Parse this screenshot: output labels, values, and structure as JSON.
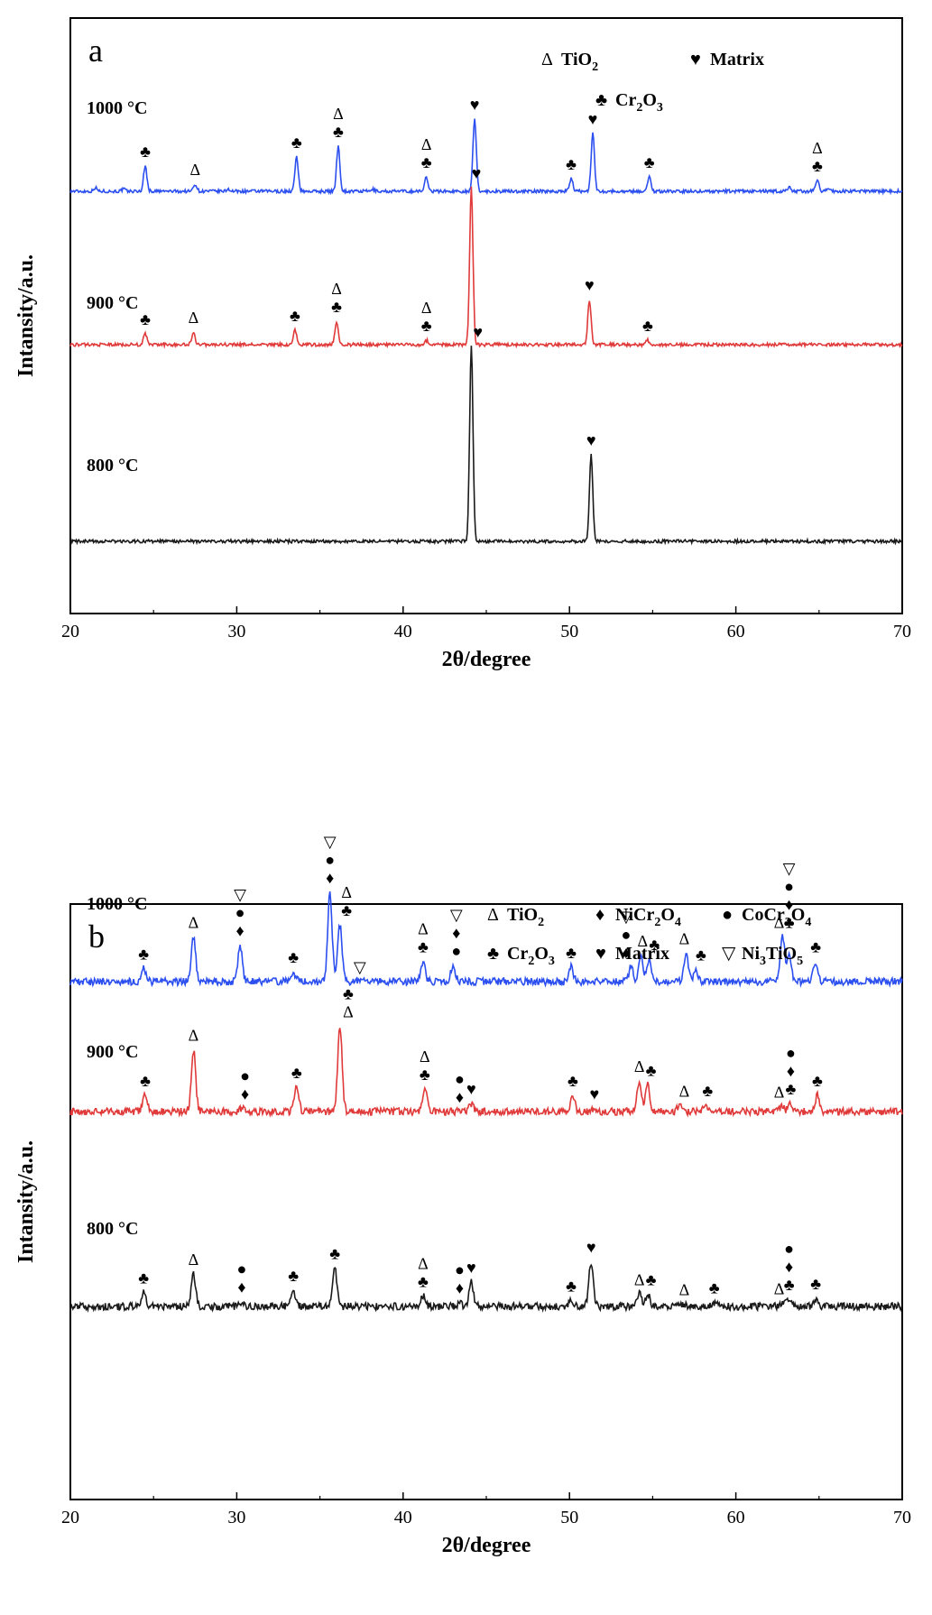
{
  "chart_data": [
    {
      "type": "line",
      "panel_label": "a",
      "xlabel": "2θ/degree",
      "ylabel": "Intansity/a.u.",
      "xlim": [
        20,
        70
      ],
      "xticks": [
        "20",
        "30",
        "40",
        "50",
        "60",
        "70"
      ],
      "legend": {
        "placement": "top-right",
        "items": [
          {
            "symbol": "Δ",
            "label": "TiO",
            "sub": "2"
          },
          {
            "symbol": "♥",
            "label": "Matrix",
            "sub": ""
          },
          {
            "symbol": "♣",
            "label": "Cr",
            "sub": "2",
            "label2": "O",
            "sub2": "3"
          }
        ]
      },
      "series": [
        {
          "name": "1000 °C",
          "color": "#2c4ff0",
          "baseline": 0.91,
          "peaks": [
            [
              21.5,
              0.1
            ],
            [
              23.2,
              0.06
            ],
            [
              24.5,
              0.7
            ],
            [
              27.5,
              0.2
            ],
            [
              29.5,
              0.06
            ],
            [
              33.6,
              0.95
            ],
            [
              36.1,
              1.25
            ],
            [
              38.2,
              0.05
            ],
            [
              41.4,
              0.4
            ],
            [
              44.3,
              2.0
            ],
            [
              50.1,
              0.35
            ],
            [
              51.4,
              1.6
            ],
            [
              54.8,
              0.4
            ],
            [
              63.2,
              0.12
            ],
            [
              64.9,
              0.3
            ],
            [
              65.6,
              0.1
            ]
          ],
          "annotations": [
            {
              "x": 24.5,
              "symbols": [
                "♣"
              ]
            },
            {
              "x": 27.5,
              "symbols": [
                "Δ"
              ]
            },
            {
              "x": 33.6,
              "symbols": [
                "♣"
              ]
            },
            {
              "x": 36.1,
              "symbols": [
                "Δ",
                "♣"
              ]
            },
            {
              "x": 41.4,
              "symbols": [
                "Δ",
                "♣"
              ]
            },
            {
              "x": 44.3,
              "symbols": [
                "♥"
              ]
            },
            {
              "x": 50.1,
              "symbols": [
                "♣"
              ]
            },
            {
              "x": 51.4,
              "symbols": [
                "♥"
              ]
            },
            {
              "x": 54.8,
              "symbols": [
                "♣"
              ]
            },
            {
              "x": 64.9,
              "symbols": [
                "Δ",
                "♣"
              ]
            }
          ]
        },
        {
          "name": "900 °C",
          "color": "#e03a3a",
          "baseline": 0.46,
          "peaks": [
            [
              24.5,
              0.3
            ],
            [
              27.4,
              0.35
            ],
            [
              33.5,
              0.4
            ],
            [
              36.0,
              0.65
            ],
            [
              41.4,
              0.12
            ],
            [
              44.1,
              4.35
            ],
            [
              51.2,
              1.25
            ],
            [
              54.7,
              0.12
            ]
          ],
          "annotations": [
            {
              "x": 24.5,
              "symbols": [
                "♣"
              ]
            },
            {
              "x": 27.4,
              "symbols": [
                "Δ"
              ]
            },
            {
              "x": 33.5,
              "symbols": [
                "♣"
              ]
            },
            {
              "x": 36.0,
              "symbols": [
                "Δ",
                "♣"
              ]
            },
            {
              "x": 41.4,
              "symbols": [
                "Δ",
                "♣"
              ]
            },
            {
              "x": 44.4,
              "symbols": [
                "♥"
              ]
            },
            {
              "x": 51.2,
              "symbols": [
                "♥"
              ]
            },
            {
              "x": 54.7,
              "symbols": [
                "♣"
              ]
            }
          ]
        },
        {
          "name": "800 °C",
          "color": "#1a1a1a",
          "baseline": 0.0,
          "peaks": [
            [
              44.1,
              5.4
            ],
            [
              51.3,
              2.4
            ]
          ],
          "annotations": [
            {
              "x": 44.5,
              "symbols": [
                "♥"
              ]
            },
            {
              "x": 51.3,
              "symbols": [
                "♥"
              ]
            }
          ]
        }
      ]
    },
    {
      "type": "line",
      "panel_label": "b",
      "xlabel": "2θ/degree",
      "ylabel": "Intansity/a.u.",
      "xlim": [
        20,
        70
      ],
      "xticks": [
        "20",
        "30",
        "40",
        "50",
        "60",
        "70"
      ],
      "legend": {
        "placement": "top-right",
        "items": [
          {
            "symbol": "Δ",
            "label": "TiO",
            "sub": "2"
          },
          {
            "symbol": "♦",
            "label": "NiCr",
            "sub": "2",
            "label2": "O",
            "sub2": "4"
          },
          {
            "symbol": "●",
            "label": "CoCr",
            "sub": "2",
            "label2": "O",
            "sub2": "4"
          },
          {
            "symbol": "♣",
            "label": "Cr",
            "sub": "2",
            "label2": "O",
            "sub2": "3"
          },
          {
            "symbol": "♥",
            "label": "Matrix",
            "sub": ""
          },
          {
            "symbol": "▽",
            "label": "Ni",
            "sub": "3",
            "label2": "TiO",
            "sub2": "5"
          }
        ]
      },
      "series": [
        {
          "name": "1000 °C",
          "color": "#2c4ff0",
          "baseline": 0.95,
          "peaks": [
            [
              24.4,
              0.16
            ],
            [
              27.4,
              0.55
            ],
            [
              30.2,
              0.45
            ],
            [
              33.4,
              0.12
            ],
            [
              35.6,
              1.1
            ],
            [
              36.2,
              0.7
            ],
            [
              41.2,
              0.25
            ],
            [
              43.0,
              0.2
            ],
            [
              50.1,
              0.18
            ],
            [
              53.7,
              0.18
            ],
            [
              54.3,
              0.32
            ],
            [
              54.8,
              0.28
            ],
            [
              57.0,
              0.35
            ],
            [
              57.6,
              0.15
            ],
            [
              62.8,
              0.55
            ],
            [
              63.2,
              0.35
            ],
            [
              64.8,
              0.25
            ]
          ],
          "annotations": [
            {
              "x": 24.4,
              "symbols": [
                "♣"
              ]
            },
            {
              "x": 27.4,
              "symbols": [
                "Δ"
              ]
            },
            {
              "x": 30.2,
              "symbols": [
                "▽",
                "●",
                "♦"
              ]
            },
            {
              "x": 33.4,
              "symbols": [
                "♣"
              ]
            },
            {
              "x": 35.6,
              "symbols": [
                "▽",
                "●",
                "♦"
              ]
            },
            {
              "x": 36.6,
              "symbols": [
                "Δ",
                "♣"
              ]
            },
            {
              "x": 37.4,
              "symbols": [
                "▽"
              ]
            },
            {
              "x": 41.2,
              "symbols": [
                "Δ",
                "♣"
              ]
            },
            {
              "x": 43.2,
              "symbols": [
                "▽",
                "♦",
                "●"
              ]
            },
            {
              "x": 50.1,
              "symbols": [
                "♣"
              ]
            },
            {
              "x": 53.4,
              "symbols": [
                "▽",
                "●",
                "♦"
              ]
            },
            {
              "x": 54.4,
              "symbols": [
                "Δ"
              ]
            },
            {
              "x": 55.1,
              "symbols": [
                "♣"
              ]
            },
            {
              "x": 56.9,
              "symbols": [
                "Δ"
              ]
            },
            {
              "x": 57.9,
              "symbols": [
                "♣"
              ]
            },
            {
              "x": 62.6,
              "symbols": [
                "Δ"
              ]
            },
            {
              "x": 63.2,
              "symbols": [
                "▽",
                "●",
                "♦",
                "♣"
              ]
            },
            {
              "x": 64.8,
              "symbols": [
                "♣"
              ]
            }
          ]
        },
        {
          "name": "900 °C",
          "color": "#e03a3a",
          "baseline": 0.48,
          "peaks": [
            [
              24.5,
              0.2
            ],
            [
              27.4,
              0.76
            ],
            [
              30.3,
              0.04
            ],
            [
              33.6,
              0.3
            ],
            [
              36.2,
              1.05
            ],
            [
              41.3,
              0.28
            ],
            [
              44.1,
              0.1
            ],
            [
              50.2,
              0.2
            ],
            [
              51.5,
              0.04
            ],
            [
              54.2,
              0.38
            ],
            [
              54.7,
              0.33
            ],
            [
              56.6,
              0.07
            ],
            [
              58.2,
              0.08
            ],
            [
              62.8,
              0.06
            ],
            [
              63.3,
              0.1
            ],
            [
              64.9,
              0.2
            ]
          ],
          "annotations": [
            {
              "x": 24.5,
              "symbols": [
                "♣"
              ]
            },
            {
              "x": 27.4,
              "symbols": [
                "Δ"
              ]
            },
            {
              "x": 30.5,
              "symbols": [
                "●",
                "♦"
              ]
            },
            {
              "x": 33.6,
              "symbols": [
                "♣"
              ]
            },
            {
              "x": 36.7,
              "symbols": [
                "♣",
                "Δ"
              ]
            },
            {
              "x": 41.3,
              "symbols": [
                "Δ",
                "♣"
              ]
            },
            {
              "x": 43.4,
              "symbols": [
                "●",
                "♦"
              ]
            },
            {
              "x": 44.1,
              "symbols": [
                "♥"
              ]
            },
            {
              "x": 50.2,
              "symbols": [
                "♣"
              ]
            },
            {
              "x": 51.5,
              "symbols": [
                "♥"
              ]
            },
            {
              "x": 54.2,
              "symbols": [
                "Δ"
              ]
            },
            {
              "x": 54.9,
              "symbols": [
                "♣"
              ]
            },
            {
              "x": 56.9,
              "symbols": [
                "Δ"
              ]
            },
            {
              "x": 58.3,
              "symbols": [
                "♣"
              ]
            },
            {
              "x": 62.6,
              "symbols": [
                "Δ"
              ]
            },
            {
              "x": 63.3,
              "symbols": [
                "●",
                "♦",
                "♣"
              ]
            },
            {
              "x": 64.9,
              "symbols": [
                "♣"
              ]
            }
          ]
        },
        {
          "name": "800 °C",
          "color": "#1a1a1a",
          "baseline": 0.0,
          "peaks": [
            [
              24.4,
              0.17
            ],
            [
              27.4,
              0.4
            ],
            [
              30.3,
              0.06
            ],
            [
              33.4,
              0.2
            ],
            [
              35.9,
              0.47
            ],
            [
              41.2,
              0.13
            ],
            [
              43.4,
              0.05
            ],
            [
              44.1,
              0.3
            ],
            [
              50.1,
              0.07
            ],
            [
              51.3,
              0.55
            ],
            [
              54.2,
              0.15
            ],
            [
              54.7,
              0.15
            ],
            [
              56.8,
              0.03
            ],
            [
              58.7,
              0.05
            ],
            [
              62.8,
              0.04
            ],
            [
              63.2,
              0.09
            ],
            [
              64.8,
              0.1
            ]
          ],
          "annotations": [
            {
              "x": 24.4,
              "symbols": [
                "♣"
              ]
            },
            {
              "x": 27.4,
              "symbols": [
                "Δ"
              ]
            },
            {
              "x": 30.3,
              "symbols": [
                "●",
                "♦"
              ]
            },
            {
              "x": 33.4,
              "symbols": [
                "♣"
              ]
            },
            {
              "x": 35.9,
              "symbols": [
                "♣"
              ]
            },
            {
              "x": 41.2,
              "symbols": [
                "Δ",
                "♣"
              ]
            },
            {
              "x": 43.4,
              "symbols": [
                "●",
                "♦"
              ]
            },
            {
              "x": 44.1,
              "symbols": [
                "♥"
              ]
            },
            {
              "x": 50.1,
              "symbols": [
                "♣"
              ]
            },
            {
              "x": 51.3,
              "symbols": [
                "♥"
              ]
            },
            {
              "x": 54.2,
              "symbols": [
                "Δ"
              ]
            },
            {
              "x": 54.9,
              "symbols": [
                "♣"
              ]
            },
            {
              "x": 56.9,
              "symbols": [
                "Δ"
              ]
            },
            {
              "x": 58.7,
              "symbols": [
                "♣"
              ]
            },
            {
              "x": 62.6,
              "symbols": [
                "Δ"
              ]
            },
            {
              "x": 63.2,
              "symbols": [
                "●",
                "♦",
                "♣"
              ]
            },
            {
              "x": 64.8,
              "symbols": [
                "♣"
              ]
            }
          ]
        }
      ]
    }
  ]
}
